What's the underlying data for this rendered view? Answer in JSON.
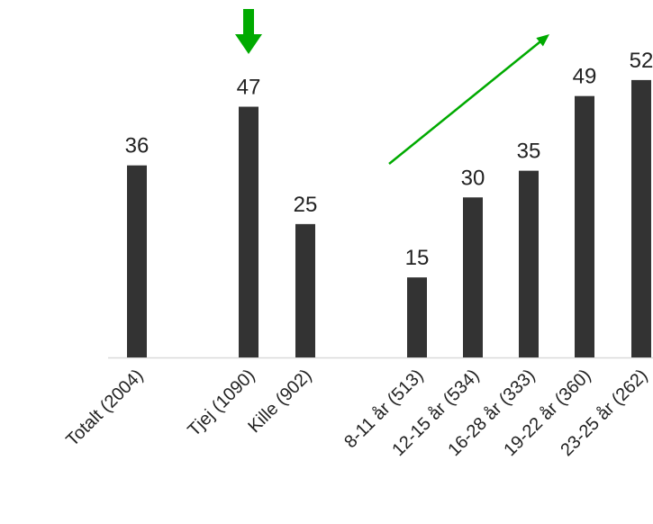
{
  "chart_data": {
    "type": "bar",
    "categories": [
      "Totalt (2004)",
      "Tjej (1090)",
      "Kille (902)",
      "8-11 år (513)",
      "12-15 år (534)",
      "16-28 år (333)",
      "19-22 år (360)",
      "23-25 år (262)"
    ],
    "values": [
      36,
      47,
      25,
      15,
      30,
      35,
      49,
      52
    ],
    "bar_color": "#333333",
    "annotations": [
      {
        "type": "arrow-down",
        "category": "Tjej (1090)",
        "color": "#00aa00"
      },
      {
        "type": "trend-arrow",
        "from_category": "8-11 år (513)",
        "to_category": "19-22 år (360)",
        "color": "#00aa00"
      }
    ]
  }
}
